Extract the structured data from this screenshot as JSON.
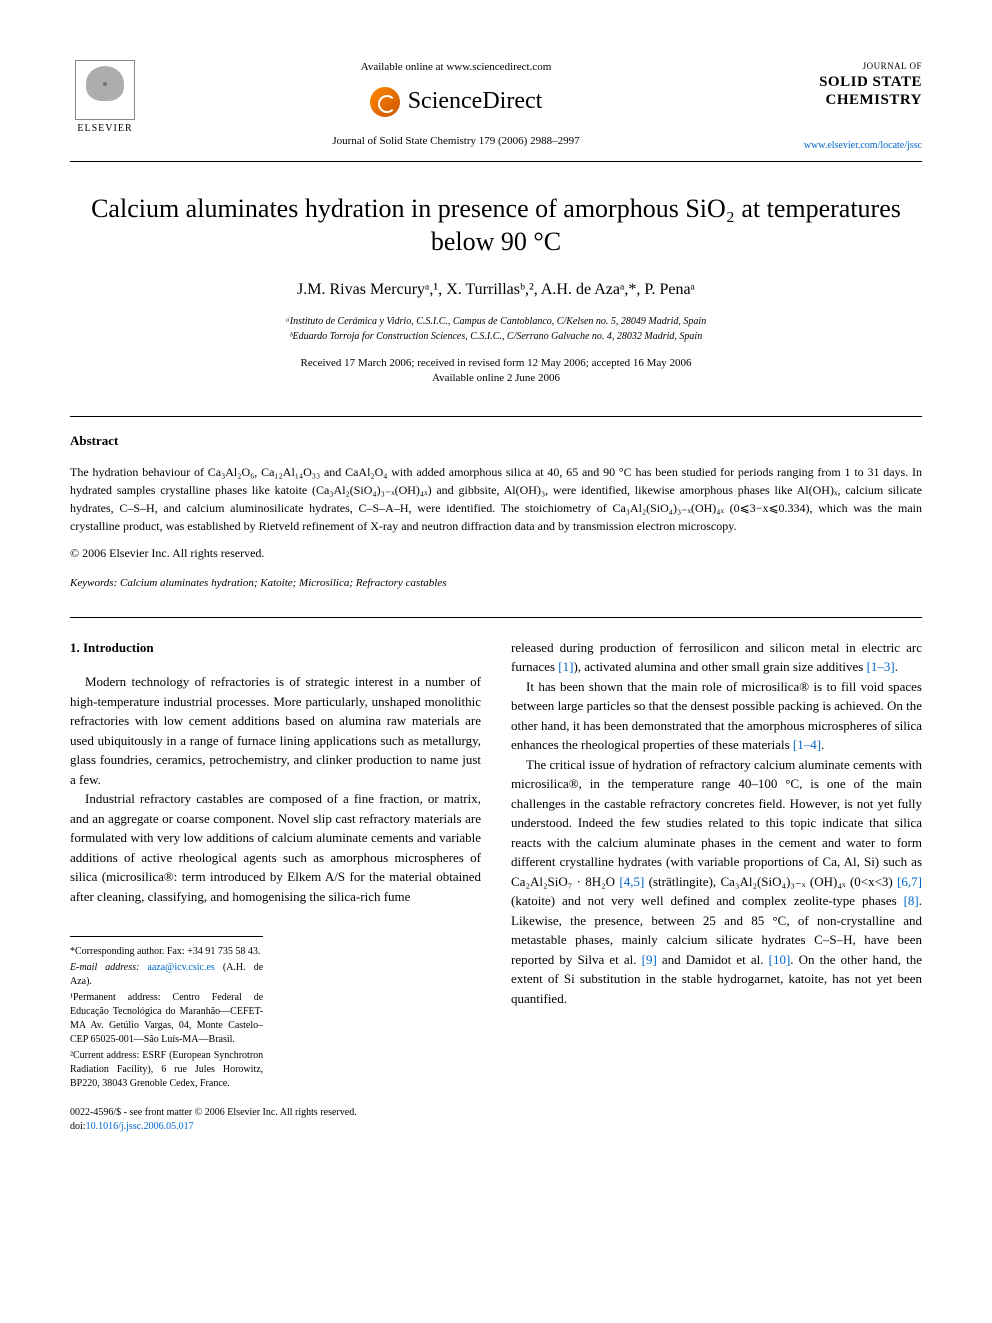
{
  "header": {
    "elsevier_label": "ELSEVIER",
    "available_online": "Available online at www.sciencedirect.com",
    "sciencedirect": "ScienceDirect",
    "journal_ref": "Journal of Solid State Chemistry 179 (2006) 2988–2997",
    "journal_of": "JOURNAL OF",
    "journal_name_1": "SOLID STATE",
    "journal_name_2": "CHEMISTRY",
    "journal_url": "www.elsevier.com/locate/jssc"
  },
  "title": "Calcium aluminates hydration in presence of amorphous SiO₂ at temperatures below 90 °C",
  "authors": "J.M. Rivas Mercuryᵃ,¹, X. Turrillasᵇ,², A.H. de Azaᵃ,*, P. Penaᵃ",
  "affiliations": {
    "a": "ᵃInstituto de Cerámica y Vidrio, C.S.I.C., Campus de Cantoblanco, C/Kelsen no. 5, 28049 Madrid, Spain",
    "b": "ᵇEduardo Torroja for Construction Sciences, C.S.I.C., C/Serrano Galvache no. 4, 28032 Madrid, Spain"
  },
  "dates": {
    "received": "Received 17 March 2006; received in revised form 12 May 2006; accepted 16 May 2006",
    "available": "Available online 2 June 2006"
  },
  "abstract": {
    "heading": "Abstract",
    "text": "The hydration behaviour of Ca₃Al₂O₆, Ca₁₂Al₁₄O₃₃ and CaAl₂O₄ with added amorphous silica at 40, 65 and 90 °C has been studied for periods ranging from 1 to 31 days. In hydrated samples crystalline phases like katoite (Ca₃Al₂(SiO₄)₃₋ₓ(OH)₄ₓ) and gibbsite, Al(OH)₃, were identified, likewise amorphous phases like Al(OH)ₓ, calcium silicate hydrates, C–S–H, and calcium aluminosilicate hydrates, C–S–A–H, were identified. The stoichiometry of Ca₃Al₂(SiO₄)₃₋ₓ(OH)₄ₓ (0⩽3−x⩽0.334), which was the main crystalline product, was established by Rietveld refinement of X-ray and neutron diffraction data and by transmission electron microscopy.",
    "copyright": "© 2006 Elsevier Inc. All rights reserved."
  },
  "keywords": {
    "label": "Keywords:",
    "text": " Calcium aluminates hydration; Katoite; Microsilica; Refractory castables"
  },
  "section1": {
    "heading": "1. Introduction",
    "para1": "Modern technology of refractories is of strategic interest in a number of high-temperature industrial processes. More particularly, unshaped monolithic refractories with low cement additions based on alumina raw materials are used ubiquitously in a range of furnace lining applications such as metallurgy, glass foundries, ceramics, petrochemistry, and clinker production to name just a few.",
    "para2": "Industrial refractory castables are composed of a fine fraction, or matrix, and an aggregate or coarse component. Novel slip cast refractory materials are formulated with very low additions of calcium aluminate cements and variable additions of active rheological agents such as amorphous microspheres of silica (microsilica®: term introduced by Elkem A/S for the material obtained after cleaning, classifying, and homogenising the silica-rich fume",
    "para3_start": "released during production of ferrosilicon and silicon metal in electric arc furnaces ",
    "ref1": "[1]",
    "para3_mid": "), activated alumina and other small grain size additives ",
    "ref13": "[1–3]",
    "para3_end": ".",
    "para4_start": "It has been shown that the main role of microsilica® is to fill void spaces between large particles so that the densest possible packing is achieved. On the other hand, it has been demonstrated that the amorphous microspheres of silica enhances the rheological properties of these materials ",
    "ref14": "[1–4]",
    "para4_end": ".",
    "para5_start": "The critical issue of hydration of refractory calcium aluminate cements with microsilica®, in the temperature range 40–100 °C, is one of the main challenges in the castable refractory concretes field. However, is not yet fully understood. Indeed the few studies related to this topic indicate that silica reacts with the calcium aluminate phases in the cement and water to form different crystalline hydrates (with variable proportions of Ca, Al, Si) such as Ca₂Al₂SiO₇ · 8H₂O ",
    "ref45": "[4,5]",
    "para5_mid1": " (strätlingite), Ca₃Al₂(SiO₄)₃₋ₓ (OH)₄ₓ (0<x<3) ",
    "ref67": "[6,7]",
    "para5_mid2": " (katoite) and not very well defined and complex zeolite-type phases ",
    "ref8": "[8]",
    "para5_mid3": ". Likewise, the presence, between 25 and 85 °C, of non-crystalline and metastable phases, mainly calcium silicate hydrates C–S–H, have been reported by Silva et al. ",
    "ref9": "[9]",
    "para5_mid4": " and Damidot et al. ",
    "ref10": "[10]",
    "para5_end": ". On the other hand, the extent of Si substitution in the stable hydrogarnet, katoite, has not yet been quantified."
  },
  "footnotes": {
    "corresponding": "*Corresponding author. Fax: +34 91 735 58 43.",
    "email_label": "E-mail address: ",
    "email": "aaza@icv.csic.es",
    "email_name": " (A.H. de Aza).",
    "perm1": "¹Permanent address: Centro Federal de Educação Tecnológica do Maranhão—CEFET-MA Av. Getúlio Vargas, 04, Monte Castelo–CEP 65025-001—São Luís-MA—Brasil.",
    "perm2": "²Current address: ESRF (European Synchrotron Radiation Facility), 6 rue Jules Horowitz, BP220, 38043 Grenoble Cedex, France."
  },
  "bottom": {
    "line1": "0022-4596/$ - see front matter © 2006 Elsevier Inc. All rights reserved.",
    "doi_label": "doi:",
    "doi": "10.1016/j.jssc.2006.05.017"
  }
}
